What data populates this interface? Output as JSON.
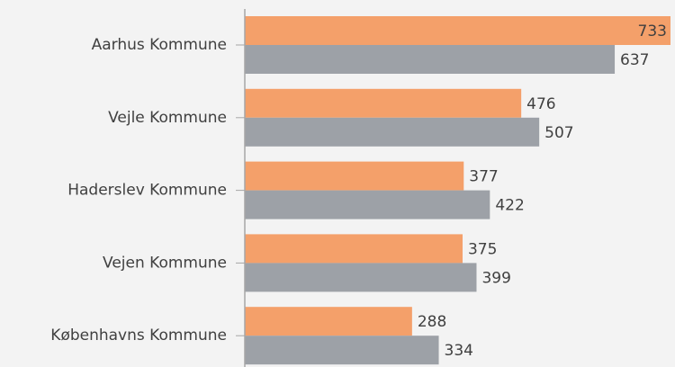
{
  "chart_data": {
    "type": "bar",
    "orientation": "horizontal",
    "categories": [
      "Aarhus Kommune",
      "Vejle Kommune",
      "Haderslev Kommune",
      "Vejen Kommune",
      "Københavns Kommune"
    ],
    "series": [
      {
        "color": "#f4a06a",
        "values": [
          733,
          476,
          377,
          375,
          288
        ]
      },
      {
        "color": "#9da1a7",
        "values": [
          637,
          507,
          422,
          399,
          334
        ]
      }
    ]
  }
}
